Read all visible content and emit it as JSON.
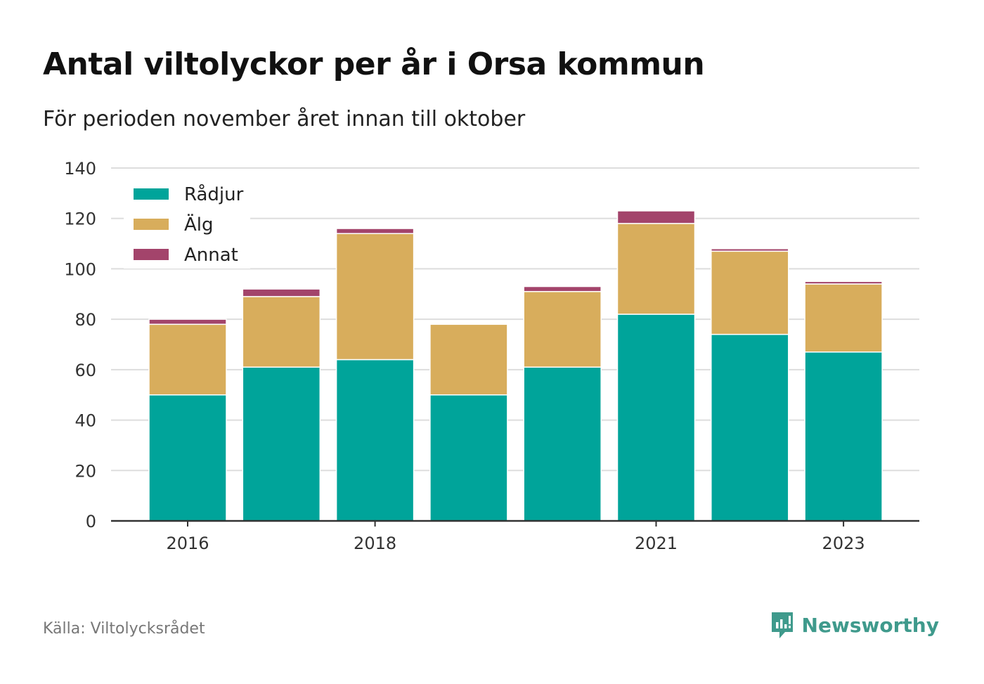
{
  "header": {
    "title": "Antal viltolyckor per år i Orsa kommun",
    "subtitle": "För perioden november året innan till oktober"
  },
  "footer": {
    "source": "Källa: Viltolycksrådet",
    "brand": "Newsworthy"
  },
  "colors": {
    "radjur": "#00a49a",
    "alg": "#d8ad5c",
    "annat": "#a3446b",
    "grid": "#dddddd",
    "axis": "#333333",
    "brand": "#3f9a8c"
  },
  "chart_data": {
    "type": "bar",
    "stacked": true,
    "categories": [
      "2016",
      "2017",
      "2018",
      "2019",
      "2020",
      "2021",
      "2022",
      "2023"
    ],
    "x_tick_labels": [
      "2016",
      "2018",
      "2021",
      "2023"
    ],
    "series": [
      {
        "name": "Rådjur",
        "values": [
          50,
          61,
          64,
          50,
          61,
          82,
          74,
          67
        ]
      },
      {
        "name": "Älg",
        "values": [
          28,
          28,
          50,
          28,
          30,
          36,
          33,
          27
        ]
      },
      {
        "name": "Annat",
        "values": [
          2,
          3,
          2,
          0,
          2,
          5,
          1,
          1
        ]
      }
    ],
    "ylim": [
      0,
      140
    ],
    "y_ticks": [
      0,
      20,
      40,
      60,
      80,
      100,
      120,
      140
    ],
    "grid": true,
    "legend": "top-left"
  }
}
